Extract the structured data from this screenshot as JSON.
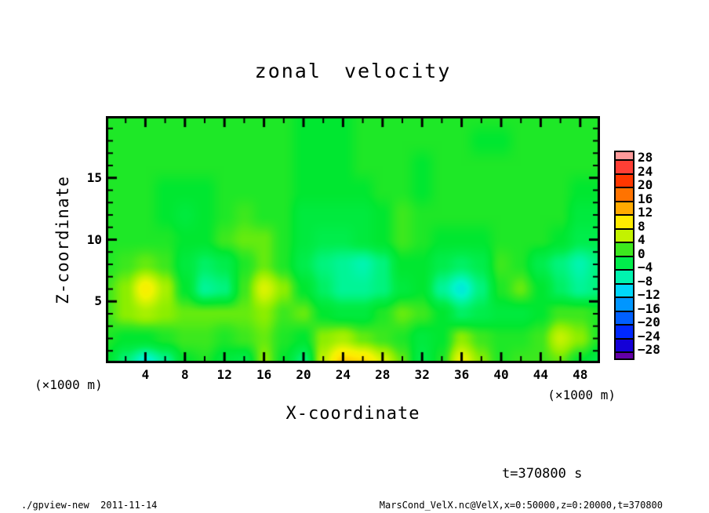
{
  "title": "zonal velocity",
  "axes": {
    "x": {
      "label": "X-coordinate",
      "unit": "(×1000 m)",
      "tick_labels": [
        4,
        8,
        12,
        16,
        20,
        24,
        28,
        32,
        36,
        40,
        44,
        48
      ],
      "minor_step": 2,
      "range": [
        0,
        50
      ]
    },
    "z": {
      "label": "Z-coordinate",
      "unit": "(×1000 m)",
      "tick_labels": [
        5,
        10,
        15
      ],
      "minor_step": 1,
      "range": [
        0,
        20
      ]
    }
  },
  "colorbar": {
    "labels": [
      28,
      24,
      20,
      16,
      12,
      8,
      4,
      0,
      -4,
      -8,
      -12,
      -16,
      -20,
      -24,
      -28
    ],
    "interval": 4
  },
  "annotations": {
    "time": "t=370800 s",
    "footer_left": "./gpview-new  2011-11-14",
    "footer_right": "MarsCond_VelX.nc@VelX,x=0:50000,z=0:20000,t=370800"
  },
  "chart_data": {
    "type": "heatmap",
    "title": "zonal velocity",
    "xlabel": "X-coordinate",
    "ylabel": "Z-coordinate",
    "x_unit": "×1000 m",
    "z_unit": "×1000 m",
    "x": [
      0,
      2,
      4,
      6,
      8,
      10,
      12,
      14,
      16,
      18,
      20,
      22,
      24,
      26,
      28,
      30,
      32,
      34,
      36,
      38,
      40,
      42,
      44,
      46,
      48,
      50
    ],
    "z": [
      20,
      18,
      16,
      14,
      12,
      10,
      8,
      6,
      4,
      2,
      0
    ],
    "values": [
      [
        1,
        1,
        1,
        1,
        1,
        1,
        1,
        1,
        1,
        1,
        0,
        0,
        0,
        1,
        1,
        1,
        1,
        1,
        1,
        1,
        1,
        1,
        1,
        1,
        1,
        1
      ],
      [
        1,
        1,
        1,
        1,
        1,
        1,
        1,
        1,
        1,
        1,
        0,
        0,
        0,
        1,
        1,
        1,
        1,
        1,
        1,
        0,
        0,
        1,
        1,
        1,
        1,
        1
      ],
      [
        1,
        1,
        1,
        1,
        1,
        1,
        1,
        1,
        1,
        1,
        0,
        0,
        0,
        1,
        1,
        1,
        0,
        1,
        1,
        1,
        1,
        1,
        1,
        1,
        1,
        1
      ],
      [
        1,
        1,
        1,
        0,
        0,
        0,
        1,
        1,
        1,
        1,
        0,
        0,
        0,
        0,
        1,
        1,
        0,
        1,
        1,
        1,
        1,
        1,
        1,
        1,
        0,
        0
      ],
      [
        1,
        1,
        1,
        0,
        -1,
        0,
        1,
        2,
        1,
        1,
        -1,
        -1,
        -1,
        -1,
        0,
        2,
        1,
        1,
        1,
        1,
        1,
        1,
        1,
        1,
        -1,
        -1
      ],
      [
        1,
        1,
        1,
        1,
        0,
        0,
        2,
        3,
        3,
        1,
        -1,
        -2,
        -2,
        -1,
        0,
        2,
        1,
        0,
        0,
        0,
        1,
        1,
        1,
        0,
        -2,
        -2
      ],
      [
        1,
        2,
        3,
        2,
        -1,
        -3,
        -2,
        1,
        3,
        1,
        -2,
        -4,
        -5,
        -6,
        -4,
        0,
        0,
        -2,
        -3,
        -2,
        2,
        1,
        -2,
        -4,
        -6,
        -4
      ],
      [
        2,
        4,
        9,
        5,
        0,
        -5,
        -4,
        2,
        7,
        4,
        0,
        -3,
        -5,
        -5,
        -4,
        -1,
        0,
        -5,
        -8,
        -4,
        1,
        3,
        0,
        -3,
        -5,
        -4
      ],
      [
        2,
        4,
        5,
        4,
        3,
        3,
        3,
        3,
        4,
        2,
        3,
        0,
        -1,
        -1,
        1,
        3,
        2,
        0,
        -3,
        -2,
        -1,
        -1,
        0,
        2,
        2,
        1
      ],
      [
        1,
        0,
        0,
        1,
        2,
        2,
        1,
        2,
        3,
        1,
        0,
        4,
        5,
        3,
        2,
        1,
        -1,
        0,
        4,
        2,
        1,
        1,
        2,
        6,
        4,
        1
      ],
      [
        0,
        -4,
        -8,
        -5,
        0,
        1,
        -1,
        -2,
        4,
        0,
        -4,
        6,
        12,
        11,
        7,
        3,
        -2,
        1,
        8,
        4,
        1,
        2,
        2,
        3,
        0,
        -2
      ]
    ],
    "levels_min": -28,
    "levels_max": 28,
    "level_step": 4,
    "colormap": [
      {
        "v": -30,
        "c": "#6E00A0"
      },
      {
        "v": -26,
        "c": "#1400D7"
      },
      {
        "v": -22,
        "c": "#0028FF"
      },
      {
        "v": -18,
        "c": "#005FFF"
      },
      {
        "v": -14,
        "c": "#0096FF"
      },
      {
        "v": -10,
        "c": "#00D7FA"
      },
      {
        "v": -7,
        "c": "#00F5C8"
      },
      {
        "v": -4,
        "c": "#00F37D"
      },
      {
        "v": -2,
        "c": "#00ED4B"
      },
      {
        "v": 0,
        "c": "#00E730"
      },
      {
        "v": 2,
        "c": "#3CE81E"
      },
      {
        "v": 4,
        "c": "#8CEE00"
      },
      {
        "v": 6,
        "c": "#C3F200"
      },
      {
        "v": 8,
        "c": "#F0F400"
      },
      {
        "v": 10,
        "c": "#FFEB00"
      },
      {
        "v": 13,
        "c": "#FFB900"
      },
      {
        "v": 16,
        "c": "#FF8C00"
      },
      {
        "v": 20,
        "c": "#FF5A00"
      },
      {
        "v": 24,
        "c": "#FF1400"
      },
      {
        "v": 28,
        "c": "#FF6969"
      },
      {
        "v": 30,
        "c": "#FFAAAA"
      }
    ]
  }
}
